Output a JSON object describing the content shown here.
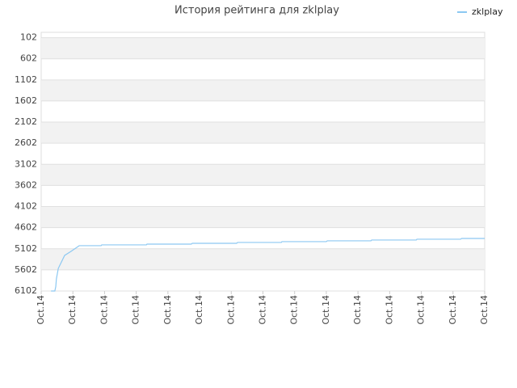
{
  "chart_data": {
    "type": "line",
    "title": "История рейтинга для zklplay",
    "series": [
      {
        "name": "zklplay",
        "color": "#8cc8f2",
        "x": [
          0.31,
          0.43,
          0.46,
          0.48,
          0.54,
          0.74,
          0.94,
          1.2,
          1.89,
          1.91,
          3.32,
          3.34,
          4.74,
          4.77,
          6.17,
          6.2,
          7.58,
          7.6,
          9.0,
          9.03,
          10.41,
          10.43,
          11.84,
          11.86,
          13.24,
          13.27,
          14
        ],
        "values": [
          6102,
          6102,
          6000,
          5815,
          5566,
          5259,
          5163,
          5029,
          5029,
          5010,
          5010,
          4991,
          4991,
          4972,
          4972,
          4952,
          4952,
          4933,
          4933,
          4914,
          4914,
          4895,
          4895,
          4876,
          4876,
          4857,
          4857
        ]
      }
    ],
    "xlim": [
      0,
      14
    ],
    "xticks": [
      {
        "value": 0,
        "label": "Oct.14"
      },
      {
        "value": 1,
        "label": "Oct.14"
      },
      {
        "value": 2,
        "label": "Oct.14"
      },
      {
        "value": 3,
        "label": "Oct.14"
      },
      {
        "value": 4,
        "label": "Oct.14"
      },
      {
        "value": 5,
        "label": "Oct.14"
      },
      {
        "value": 6,
        "label": "Oct.14"
      },
      {
        "value": 7,
        "label": "Oct.14"
      },
      {
        "value": 8,
        "label": "Oct.14"
      },
      {
        "value": 9,
        "label": "Oct.14"
      },
      {
        "value": 10,
        "label": "Oct.14"
      },
      {
        "value": 11,
        "label": "Oct.14"
      },
      {
        "value": 12,
        "label": "Oct.14"
      },
      {
        "value": 13,
        "label": "Oct.14"
      },
      {
        "value": 14,
        "label": "Oct.14"
      }
    ],
    "ylim": [
      6102,
      -24
    ],
    "yticks": [
      102,
      602,
      1102,
      1602,
      2102,
      2602,
      3102,
      3602,
      4102,
      4602,
      5102,
      5602,
      6102
    ],
    "grid": true,
    "legend": "top-right"
  }
}
